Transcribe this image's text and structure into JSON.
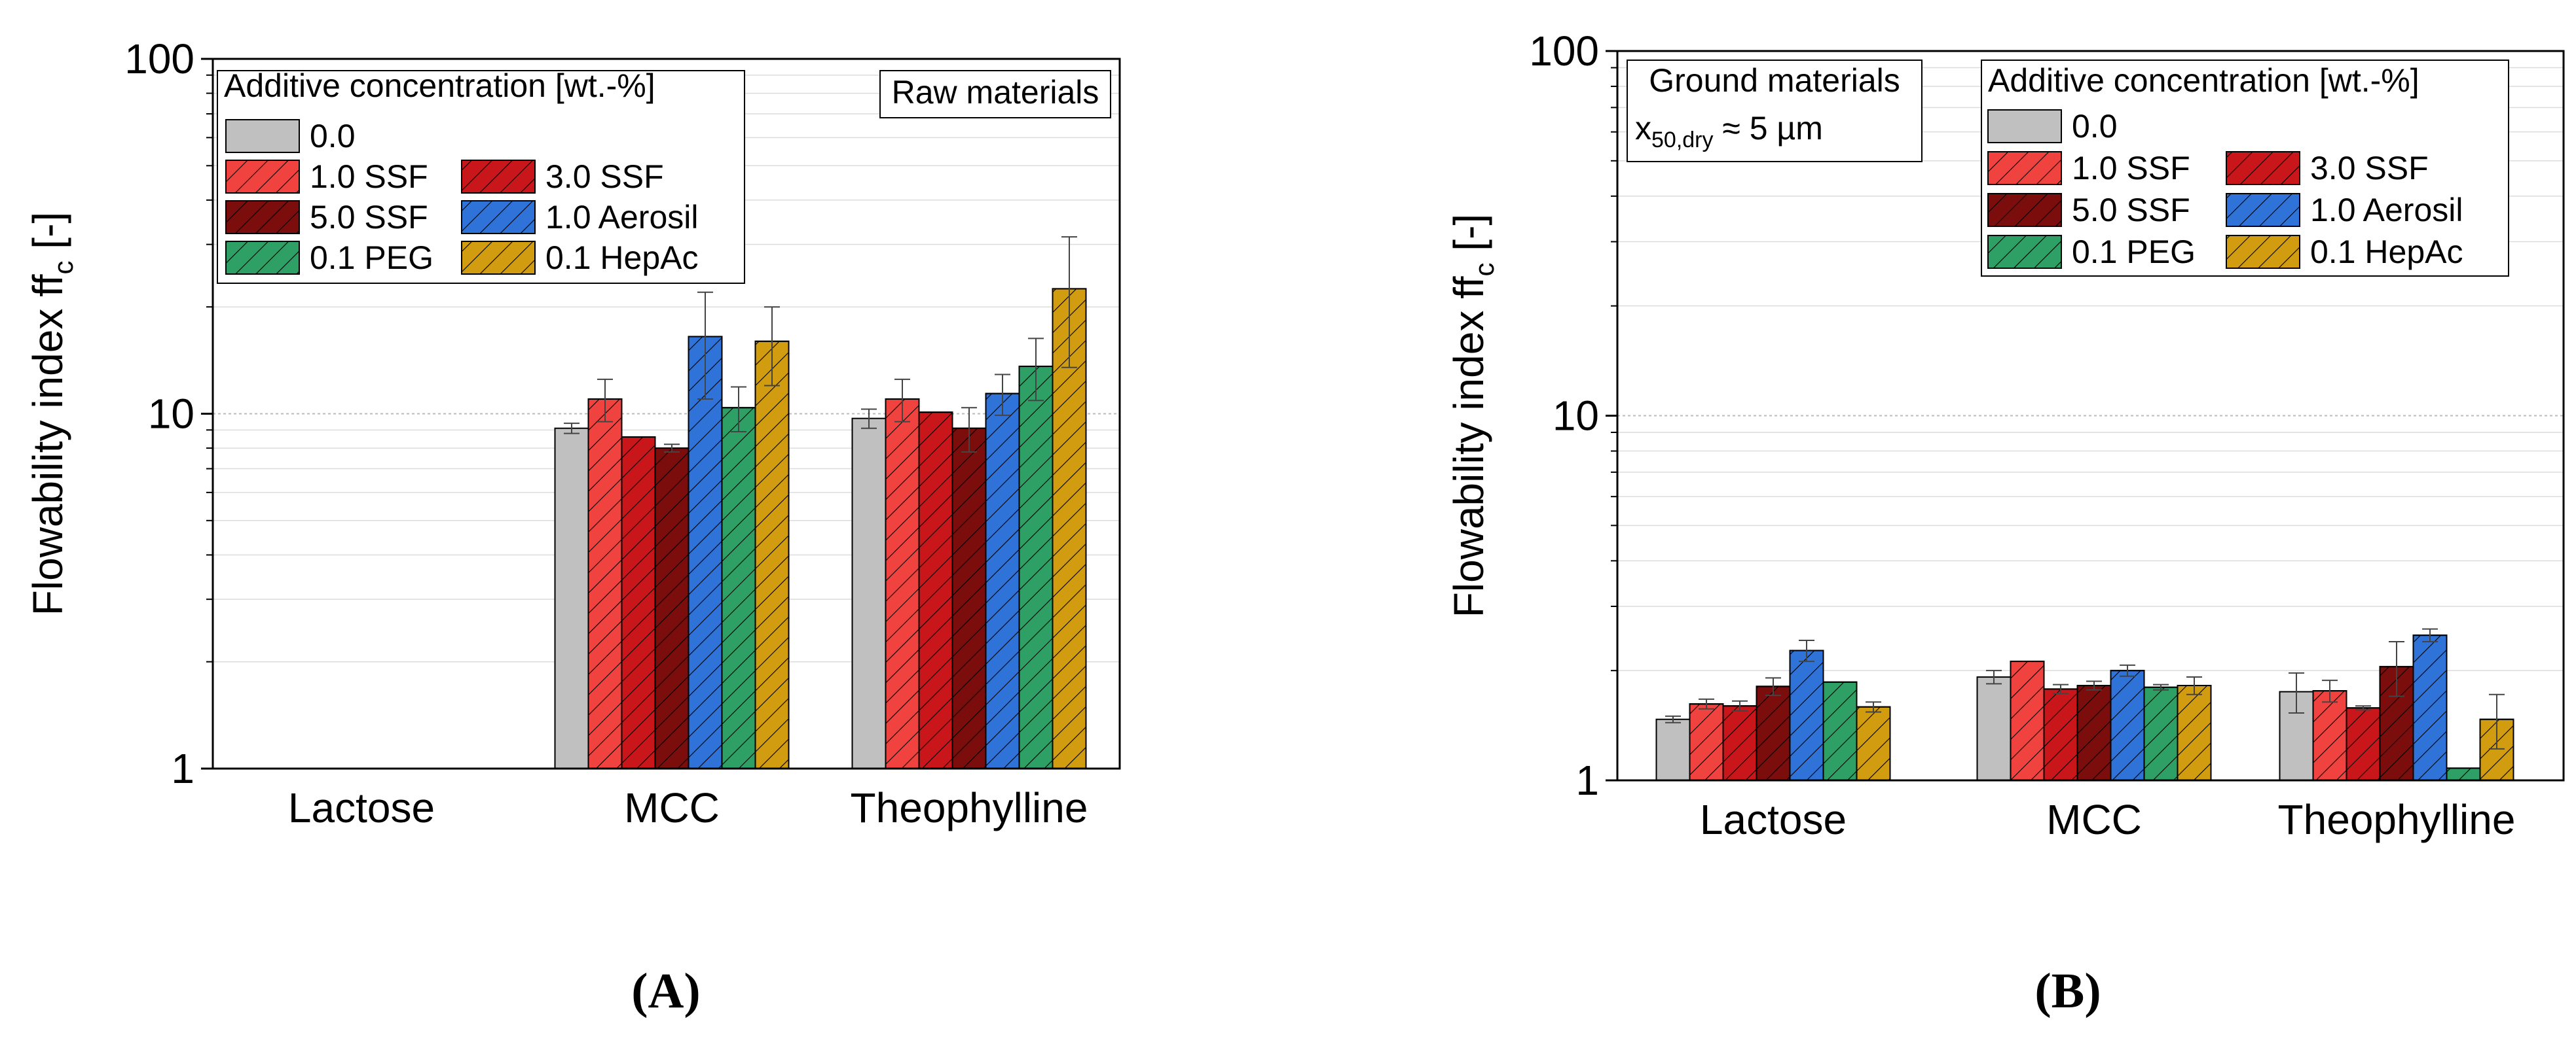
{
  "colors": {
    "0.0": "#c0c0c0",
    "1.0 SSF": "#f0433f",
    "3.0 SSF": "#c8161b",
    "5.0 SSF": "#7b0d0d",
    "1.0 Aerosil": "#2f73d8",
    "0.1 PEG": "#2fa065",
    "0.1 HepAc": "#d19c10"
  },
  "chart_data": [
    {
      "type": "bar",
      "panel_label": "(A)",
      "ylabel": "Flowability index ff",
      "ylabel_sub": "c",
      "ylabel_unit": "[-]",
      "yscale": "log",
      "ylim": [
        1,
        100
      ],
      "yticks": [
        "1",
        "10",
        "100"
      ],
      "categories": [
        "Lactose",
        "MCC",
        "Theophylline"
      ],
      "legend_title": "Additive concentration [wt.-%]",
      "legend_labels": [
        "0.0",
        "1.0 SSF",
        "3.0 SSF",
        "5.0 SSF",
        "1.0 Aerosil",
        "0.1 PEG",
        "0.1 HepAc"
      ],
      "annotation": "Raw materials",
      "series": [
        {
          "name": "0.0",
          "values": [
            null,
            9.1,
            9.7
          ],
          "errors": [
            null,
            0.3,
            0.6
          ]
        },
        {
          "name": "1.0 SSF",
          "values": [
            null,
            11.0,
            11.0
          ],
          "errors": [
            null,
            1.5,
            1.5
          ]
        },
        {
          "name": "3.0 SSF",
          "values": [
            null,
            8.6,
            10.1
          ],
          "errors": [
            null,
            0,
            0
          ]
        },
        {
          "name": "5.0 SSF",
          "values": [
            null,
            8.0,
            9.1
          ],
          "errors": [
            null,
            0.2,
            1.3
          ]
        },
        {
          "name": "1.0 Aerosil",
          "values": [
            null,
            16.5,
            11.4
          ],
          "errors": [
            null,
            5.5,
            1.5
          ]
        },
        {
          "name": "0.1 PEG",
          "values": [
            null,
            10.4,
            13.6
          ],
          "errors": [
            null,
            1.5,
            2.7
          ]
        },
        {
          "name": "0.1 HepAc",
          "values": [
            null,
            16.0,
            22.5
          ],
          "errors": [
            null,
            4.0,
            9.0
          ]
        }
      ]
    },
    {
      "type": "bar",
      "panel_label": "(B)",
      "ylabel": "Flowability index ff",
      "ylabel_sub": "c",
      "ylabel_unit": "[-]",
      "yscale": "log",
      "ylim": [
        1,
        100
      ],
      "yticks": [
        "1",
        "10",
        "100"
      ],
      "categories": [
        "Lactose",
        "MCC",
        "Theophylline"
      ],
      "legend_title": "Additive concentration [wt.-%]",
      "legend_labels": [
        "0.0",
        "1.0 SSF",
        "3.0 SSF",
        "5.0 SSF",
        "1.0 Aerosil",
        "0.1 PEG",
        "0.1 HepAc"
      ],
      "annotation": "Ground materials",
      "annotation_line2_prefix": "x",
      "annotation_line2_sub": "50,dry",
      "annotation_line2_rest": " ≈ 5 µm",
      "series": [
        {
          "name": "0.0",
          "values": [
            1.47,
            1.92,
            1.75
          ],
          "errors": [
            0.03,
            0.08,
            0.22
          ]
        },
        {
          "name": "1.0 SSF",
          "values": [
            1.62,
            2.12,
            1.76
          ],
          "errors": [
            0.05,
            0,
            0.12
          ]
        },
        {
          "name": "3.0 SSF",
          "values": [
            1.6,
            1.78,
            1.58
          ],
          "errors": [
            0.05,
            0.05,
            0.02
          ]
        },
        {
          "name": "5.0 SSF",
          "values": [
            1.81,
            1.82,
            2.05
          ],
          "errors": [
            0.1,
            0.05,
            0.35
          ]
        },
        {
          "name": "1.0 Aerosil",
          "values": [
            2.27,
            2.0,
            2.5
          ],
          "errors": [
            0.15,
            0.07,
            0.1
          ]
        },
        {
          "name": "0.1 PEG",
          "values": [
            1.86,
            1.8,
            1.08
          ],
          "errors": [
            0,
            0.03,
            0
          ]
        },
        {
          "name": "0.1 HepAc",
          "values": [
            1.59,
            1.82,
            1.47
          ],
          "errors": [
            0.05,
            0.1,
            0.25
          ]
        }
      ]
    }
  ]
}
